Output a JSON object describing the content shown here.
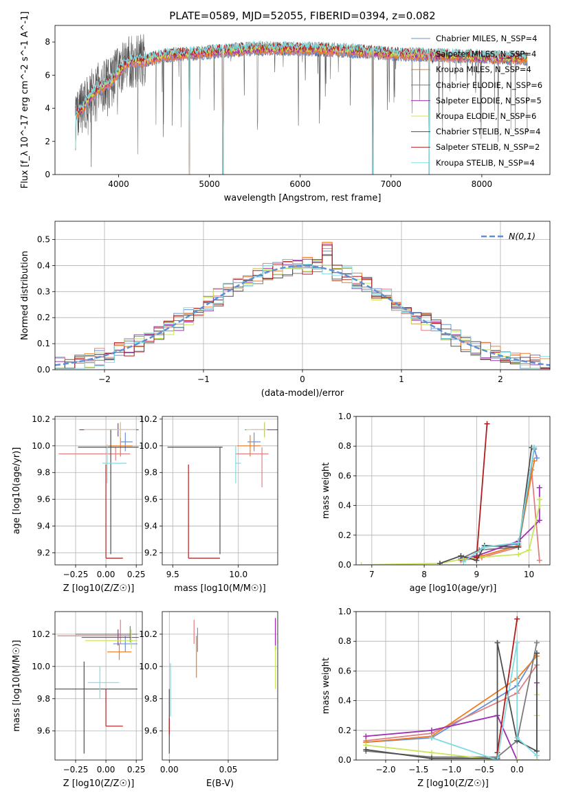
{
  "figure_title": "PLATE=0589, MJD=52055, FIBERID=0394, z=0.082",
  "colors": {
    "chabrier_miles": "#6b8fd6",
    "salpeter_miles": "#e07f7f",
    "kroupa_miles": "#f07a1e",
    "chabrier_elodie": "#7a7a7a",
    "salpeter_elodie": "#9b30b0",
    "kroupa_elodie": "#c8e65a",
    "chabrier_stelib": "#4d4d4d",
    "salpeter_stelib": "#b01c1c",
    "kroupa_stelib": "#7fdbe0",
    "normal_curve": "#5b8fd6",
    "grid": "#b0b0b0"
  },
  "chart_data": [
    {
      "id": "spectrum",
      "type": "line",
      "title": "PLATE=0589, MJD=52055, FIBERID=0394, z=0.082",
      "xlabel": "wavelength [Angstrom, rest frame]",
      "ylabel": "Flux [f_λ 10^-17 erg cm^-2 s^-1 A^-1]",
      "xlim": [
        3300,
        8750
      ],
      "ylim": [
        0,
        9
      ],
      "xticks": [
        4000,
        5000,
        6000,
        7000,
        8000
      ],
      "yticks": [
        0,
        2,
        4,
        6,
        8
      ],
      "grid": false,
      "legend_position": "right",
      "series": [
        {
          "name": "Chabrier MILES, N_SSP=4",
          "color_key": "chabrier_miles"
        },
        {
          "name": "Salpeter MILES, N_SSP=4",
          "color_key": "salpeter_miles"
        },
        {
          "name": "Kroupa MILES, N_SSP=4",
          "color_key": "kroupa_miles"
        },
        {
          "name": "Chabrier ELODIE, N_SSP=6",
          "color_key": "chabrier_elodie"
        },
        {
          "name": "Salpeter ELODIE, N_SSP=5",
          "color_key": "salpeter_elodie"
        },
        {
          "name": "Kroupa ELODIE, N_SSP=6",
          "color_key": "kroupa_elodie"
        },
        {
          "name": "Chabrier STELIB, N_SSP=4",
          "color_key": "chabrier_stelib"
        },
        {
          "name": "Salpeter STELIB, N_SSP=2",
          "color_key": "salpeter_stelib"
        },
        {
          "name": "Kroupa STELIB, N_SSP=4",
          "color_key": "kroupa_stelib"
        }
      ],
      "continuum": {
        "x": [
          3500,
          3600,
          3700,
          3800,
          3900,
          4000,
          4100,
          4300,
          4500,
          4800,
          5000,
          5500,
          6000,
          6500,
          7000,
          7500,
          8000,
          8500
        ],
        "y": [
          3.5,
          4.0,
          4.8,
          5.3,
          5.5,
          6.2,
          6.8,
          6.9,
          7.2,
          7.3,
          7.4,
          7.6,
          7.6,
          7.5,
          7.3,
          7.2,
          7.1,
          7.0
        ]
      }
    },
    {
      "id": "residuals",
      "type": "line",
      "xlabel": "(data-model)/error",
      "ylabel": "Normed distribution",
      "xlim": [
        -2.5,
        2.5
      ],
      "ylim": [
        0,
        0.57
      ],
      "xticks": [
        -2,
        -1,
        0,
        1,
        2
      ],
      "yticks": [
        0.0,
        0.1,
        0.2,
        0.3,
        0.4,
        0.5
      ],
      "grid": true,
      "legend_position": "top-right",
      "curve_label": "N(0,1)",
      "bin_width": 0.1
    },
    {
      "id": "age_vs_Z",
      "type": "scatter",
      "xlabel": "Z [log10(Z/Z☉)]",
      "ylabel": "age  [log10(age/yr)]",
      "xlim": [
        -0.42,
        0.3
      ],
      "ylim": [
        9.11,
        10.22
      ],
      "xticks": [
        -0.25,
        0.0,
        0.25
      ],
      "yticks": [
        9.2,
        9.4,
        9.6,
        9.8,
        10.0,
        10.2
      ],
      "grid": true,
      "points": [
        {
          "color_key": "chabrier_miles",
          "x": 0.16,
          "xerr": [
            0.04,
            0.06
          ],
          "y": 10.03,
          "yerr": [
            0.07,
            0.07
          ]
        },
        {
          "color_key": "salpeter_miles",
          "x": 0.08,
          "xerr": [
            0.47,
            0.12
          ],
          "y": 9.94,
          "yerr": [
            0.05,
            0.05
          ]
        },
        {
          "color_key": "kroupa_miles",
          "x": 0.12,
          "xerr": [
            0.1,
            0.1
          ],
          "y": 10.0,
          "yerr": [
            0.08,
            0.08
          ]
        },
        {
          "color_key": "chabrier_elodie",
          "x": 0.12,
          "xerr": [
            0.33,
            0.13
          ],
          "y": 10.12,
          "yerr": [
            0.05,
            0.05
          ]
        },
        {
          "color_key": "salpeter_elodie",
          "x": 0.1,
          "xerr": [
            0.32,
            0.17
          ],
          "y": 10.12,
          "yerr": [
            0.05,
            0.05
          ]
        },
        {
          "color_key": "kroupa_elodie",
          "x": 0.12,
          "xerr": [
            0.3,
            0.13
          ],
          "y": 10.12,
          "yerr": [
            0.06,
            0.06
          ]
        },
        {
          "color_key": "chabrier_stelib",
          "x": 0.04,
          "xerr": [
            0.27,
            0.23
          ],
          "y": 9.99,
          "yerr": [
            0.8,
            0.13
          ]
        },
        {
          "color_key": "salpeter_stelib",
          "x": 0.0,
          "xerr": [
            0.0,
            0.14
          ],
          "y": 9.16,
          "yerr": [
            0.0,
            0.7
          ]
        },
        {
          "color_key": "kroupa_stelib",
          "x": 0.01,
          "xerr": [
            0.04,
            0.16
          ],
          "y": 9.87,
          "yerr": [
            0.15,
            0.14
          ]
        }
      ]
    },
    {
      "id": "age_vs_mass",
      "type": "scatter",
      "xlabel": "mass [log10(M/M☉)]",
      "ylabel": "",
      "xlim": [
        9.42,
        10.3
      ],
      "ylim": [
        9.11,
        10.22
      ],
      "xticks": [
        9.5,
        10.0
      ],
      "yticks": [
        9.2,
        9.4,
        9.6,
        9.8,
        10.0,
        10.2
      ],
      "grid": true,
      "points": [
        {
          "color_key": "chabrier_miles",
          "x": 10.12,
          "xerr": [
            0.05,
            0.05
          ],
          "y": 10.03,
          "yerr": [
            0.07,
            0.07
          ]
        },
        {
          "color_key": "salpeter_miles",
          "x": 10.18,
          "xerr": [
            0.2,
            0.05
          ],
          "y": 9.94,
          "yerr": [
            0.25,
            0.05
          ]
        },
        {
          "color_key": "kroupa_miles",
          "x": 10.09,
          "xerr": [
            0.1,
            0.08
          ],
          "y": 10.0,
          "yerr": [
            0.08,
            0.08
          ]
        },
        {
          "color_key": "chabrier_elodie",
          "x": 10.2,
          "xerr": [
            0.15,
            0.03
          ],
          "y": 10.12,
          "yerr": [
            0.05,
            0.05
          ]
        },
        {
          "color_key": "salpeter_elodie",
          "x": 10.2,
          "xerr": [
            0.1,
            0.1
          ],
          "y": 10.12,
          "yerr": [
            0.05,
            0.05
          ]
        },
        {
          "color_key": "kroupa_elodie",
          "x": 10.2,
          "xerr": [
            0.14,
            0.02
          ],
          "y": 10.12,
          "yerr": [
            0.06,
            0.06
          ]
        },
        {
          "color_key": "chabrier_stelib",
          "x": 9.86,
          "xerr": [
            0.4,
            0.02
          ],
          "y": 9.99,
          "yerr": [
            0.8,
            0.0
          ]
        },
        {
          "color_key": "salpeter_stelib",
          "x": 9.62,
          "xerr": [
            0.0,
            0.24
          ],
          "y": 9.16,
          "yerr": [
            0.0,
            0.7
          ]
        },
        {
          "color_key": "kroupa_stelib",
          "x": 9.98,
          "xerr": [
            0.0,
            0.04
          ],
          "y": 9.87,
          "yerr": [
            0.15,
            0.13
          ]
        }
      ]
    },
    {
      "id": "mass_weight_vs_age",
      "type": "line",
      "xlabel": "age  [log10(age/yr)]",
      "ylabel": "mass weight",
      "xlim": [
        6.7,
        10.4
      ],
      "ylim": [
        0,
        1.0
      ],
      "xticks": [
        7,
        8,
        9,
        10
      ],
      "yticks": [
        0.0,
        0.2,
        0.4,
        0.6,
        0.8,
        1.0
      ],
      "grid": true,
      "series": [
        {
          "color_key": "chabrier_miles",
          "x": [
            8.7,
            9.15,
            9.8,
            10.1,
            10.15
          ],
          "y": [
            0.04,
            0.12,
            0.14,
            0.79,
            0.72
          ]
        },
        {
          "color_key": "salpeter_miles",
          "x": [
            8.7,
            9.1,
            9.8,
            10.05,
            10.2
          ],
          "y": [
            0.03,
            0.05,
            0.12,
            0.64,
            0.03
          ]
        },
        {
          "color_key": "kroupa_miles",
          "x": [
            8.7,
            9.1,
            9.8,
            10.1
          ],
          "y": [
            0.03,
            0.06,
            0.13,
            0.7
          ]
        },
        {
          "color_key": "chabrier_elodie",
          "x": [
            8.75,
            9.05,
            9.8,
            10.1
          ],
          "y": [
            0.05,
            0.1,
            0.12,
            0.78
          ]
        },
        {
          "color_key": "salpeter_elodie",
          "x": [
            8.7,
            9.0,
            9.8,
            10.2,
            10.2
          ],
          "y": [
            0.04,
            0.06,
            0.16,
            0.3,
            0.52
          ]
        },
        {
          "color_key": "kroupa_elodie",
          "x": [
            6.8,
            8.3,
            8.75,
            9.0,
            9.8,
            10.0,
            10.2,
            10.2
          ],
          "y": [
            0.0,
            0.01,
            0.04,
            0.05,
            0.07,
            0.1,
            0.4,
            0.44
          ]
        },
        {
          "color_key": "chabrier_stelib",
          "x": [
            8.3,
            8.7,
            9.0,
            9.15,
            9.8,
            10.05
          ],
          "y": [
            0.01,
            0.06,
            0.03,
            0.13,
            0.12,
            0.79
          ]
        },
        {
          "color_key": "salpeter_stelib",
          "x": [
            9.0,
            9.2
          ],
          "y": [
            0.05,
            0.95
          ]
        },
        {
          "color_key": "kroupa_stelib",
          "x": [
            8.75,
            9.15,
            9.8,
            10.1
          ],
          "y": [
            0.02,
            0.12,
            0.15,
            0.79
          ]
        }
      ]
    },
    {
      "id": "mass_vs_Z",
      "type": "scatter",
      "xlabel": "Z [log10(Z/Z☉)]",
      "ylabel": "mass [log10(M/M☉)]",
      "xlim": [
        -0.42,
        0.3
      ],
      "ylim": [
        9.42,
        10.34
      ],
      "xticks": [
        -0.25,
        0.0,
        0.25
      ],
      "yticks": [
        9.6,
        9.8,
        10.0,
        10.2
      ],
      "grid": true,
      "points": [
        {
          "color_key": "chabrier_miles",
          "x": 0.16,
          "xerr": [
            0.1,
            0.1
          ],
          "y": 10.14,
          "yerr": [
            0.05,
            0.05
          ]
        },
        {
          "color_key": "salpeter_miles",
          "x": 0.12,
          "xerr": [
            0.52,
            0.08
          ],
          "y": 10.19,
          "yerr": [
            0.05,
            0.1
          ]
        },
        {
          "color_key": "kroupa_miles",
          "x": 0.11,
          "xerr": [
            0.1,
            0.1
          ],
          "y": 10.09,
          "yerr": [
            0.05,
            0.05
          ]
        },
        {
          "color_key": "chabrier_elodie",
          "x": 0.2,
          "xerr": [
            0.45,
            0.06
          ],
          "y": 10.2,
          "yerr": [
            0.05,
            0.05
          ]
        },
        {
          "color_key": "salpeter_elodie",
          "x": 0.1,
          "xerr": [
            0.3,
            0.17
          ],
          "y": 10.18,
          "yerr": [
            0.05,
            0.05
          ]
        },
        {
          "color_key": "kroupa_elodie",
          "x": 0.21,
          "xerr": [
            0.38,
            0.05
          ],
          "y": 10.16,
          "yerr": [
            0.05,
            0.07
          ]
        },
        {
          "color_key": "chabrier_stelib",
          "x": -0.18,
          "xerr": [
            0.25,
            0.44
          ],
          "y": 9.86,
          "yerr": [
            0.4,
            0.17
          ]
        },
        {
          "color_key": "salpeter_stelib",
          "x": 0.0,
          "xerr": [
            0.0,
            0.14
          ],
          "y": 9.63,
          "yerr": [
            0.0,
            0.23
          ]
        },
        {
          "color_key": "kroupa_stelib",
          "x": -0.05,
          "xerr": [
            0.1,
            0.16
          ],
          "y": 9.9,
          "yerr": [
            0.1,
            0.1
          ]
        }
      ]
    },
    {
      "id": "mass_vs_ebv",
      "type": "scatter",
      "xlabel": "E(B-V)",
      "ylabel": "",
      "xlim": [
        -0.006,
        0.092
      ],
      "ylim": [
        9.42,
        10.34
      ],
      "xticks": [
        0.0,
        0.05
      ],
      "yticks": [
        9.6,
        9.8,
        10.0,
        10.2
      ],
      "grid": true,
      "points": [
        {
          "color_key": "chabrier_miles",
          "x": 0.024,
          "y": 10.14,
          "yerr": [
            0.05,
            0.1
          ]
        },
        {
          "color_key": "salpeter_miles",
          "x": 0.021,
          "y": 10.19,
          "yerr": [
            0.05,
            0.1
          ]
        },
        {
          "color_key": "kroupa_miles",
          "x": 0.023,
          "y": 10.09,
          "yerr": [
            0.16,
            0.1
          ]
        },
        {
          "color_key": "chabrier_elodie",
          "x": 0.09,
          "y": 10.2,
          "yerr": [
            0.1,
            0.1
          ]
        },
        {
          "color_key": "salpeter_elodie",
          "x": 0.09,
          "y": 10.2,
          "yerr": [
            0.1,
            0.1
          ]
        },
        {
          "color_key": "kroupa_elodie",
          "x": 0.09,
          "y": 10.03,
          "yerr": [
            0.17,
            0.1
          ]
        },
        {
          "color_key": "chabrier_stelib",
          "x": 0.0,
          "y": 9.66,
          "yerr": [
            0.2,
            0.2
          ]
        },
        {
          "color_key": "salpeter_stelib",
          "x": 0.0,
          "y": 9.63,
          "yerr": [
            0.05,
            0.05
          ]
        },
        {
          "color_key": "kroupa_stelib",
          "x": 0.001,
          "y": 9.86,
          "yerr": [
            0.17,
            0.16
          ]
        }
      ]
    },
    {
      "id": "mass_weight_vs_Z",
      "type": "line",
      "xlabel": "Z [log10(Z/Z☉)]",
      "ylabel": "mass weight",
      "xlim": [
        -2.45,
        0.5
      ],
      "ylim": [
        0,
        1.0
      ],
      "xticks": [
        -2.0,
        -1.5,
        -1.0,
        -0.5,
        0.0
      ],
      "yticks": [
        0.0,
        0.2,
        0.4,
        0.6,
        0.8,
        1.0
      ],
      "grid": true,
      "series": [
        {
          "color_key": "chabrier_miles",
          "x": [
            -2.3,
            -1.3,
            0.0,
            0.3
          ],
          "y": [
            0.12,
            0.15,
            0.5,
            0.72
          ]
        },
        {
          "color_key": "salpeter_miles",
          "x": [
            -2.3,
            -1.3,
            0.0,
            0.3
          ],
          "y": [
            0.13,
            0.18,
            0.45,
            0.64
          ]
        },
        {
          "color_key": "kroupa_miles",
          "x": [
            -2.3,
            -1.3,
            0.0,
            0.3
          ],
          "y": [
            0.12,
            0.16,
            0.55,
            0.7
          ]
        },
        {
          "color_key": "chabrier_elodie",
          "x": [
            -2.3,
            -1.3,
            -0.3,
            0.0,
            0.3
          ],
          "y": [
            0.06,
            0.02,
            0.02,
            0.13,
            0.79
          ]
        },
        {
          "color_key": "salpeter_elodie",
          "x": [
            -2.3,
            -1.3,
            -0.3,
            0.0,
            0.3,
            0.3,
            0.3
          ],
          "y": [
            0.16,
            0.2,
            0.3,
            0.0,
            0.0,
            0.3,
            0.52
          ]
        },
        {
          "color_key": "kroupa_elodie",
          "x": [
            -2.3,
            -1.3,
            -0.3,
            0.0,
            0.3,
            0.3,
            0.3
          ],
          "y": [
            0.1,
            0.05,
            0.0,
            0.0,
            0.0,
            0.3,
            0.44
          ]
        },
        {
          "color_key": "chabrier_stelib",
          "x": [
            -2.3,
            -1.3,
            -0.3,
            -0.3,
            0.0,
            0.3,
            0.3
          ],
          "y": [
            0.07,
            0.01,
            0.01,
            0.79,
            0.13,
            0.06,
            0.72
          ]
        },
        {
          "color_key": "salpeter_stelib",
          "x": [
            -0.3,
            0.0
          ],
          "y": [
            0.05,
            0.95
          ]
        },
        {
          "color_key": "kroupa_stelib",
          "x": [
            -1.3,
            -0.3,
            0.0,
            0.0,
            0.3
          ],
          "y": [
            0.15,
            0.0,
            0.79,
            0.15,
            0.03
          ]
        }
      ]
    }
  ]
}
